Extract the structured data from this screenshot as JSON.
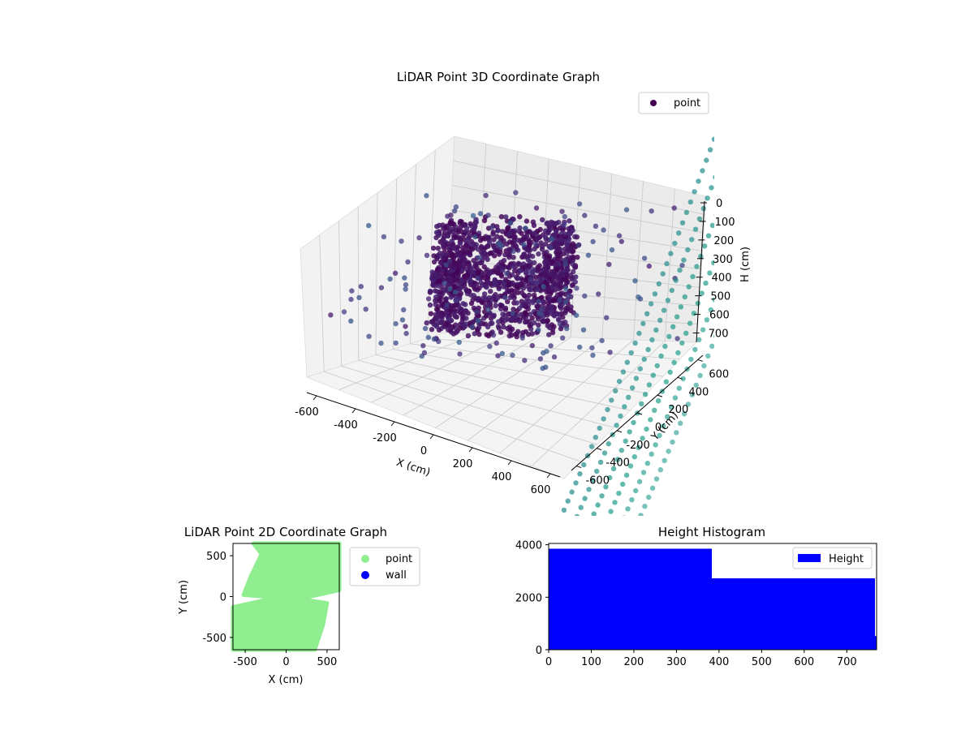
{
  "colors": {
    "point_2d": "#90ee90",
    "wall_2d": "#0000ff",
    "hist_bar": "#0000ff",
    "point_3d_dark": "#440154",
    "point_3d_teal": "#5fb4b4",
    "point_3d_mid": "#3b528b"
  },
  "chart_data": [
    {
      "type": "scatter",
      "title": "LiDAR Point 3D Coordinate Graph",
      "xlabel": "X (cm)",
      "ylabel": "Y (cm)",
      "zlabel": "H (cm)",
      "x_ticks": [
        "-600",
        "-400",
        "-200",
        "0",
        "200",
        "400",
        "600"
      ],
      "y_ticks": [
        "-600",
        "-400",
        "-200",
        "0",
        "200",
        "400",
        "600"
      ],
      "z_ticks": [
        "0",
        "100",
        "200",
        "300",
        "400",
        "500",
        "600",
        "700"
      ],
      "xlim": [
        -650,
        650
      ],
      "ylim": [
        -650,
        650
      ],
      "zlim": [
        0,
        750
      ],
      "z_inverted": true,
      "legend": {
        "entries": [
          "point"
        ],
        "placement": "top-right"
      },
      "grid": true,
      "colormap": "viridis"
    },
    {
      "type": "scatter",
      "title": "LiDAR Point 2D Coordinate Graph",
      "xlabel": "X (cm)",
      "ylabel": "Y (cm)",
      "x_ticks": [
        "-500",
        "0",
        "500"
      ],
      "y_ticks": [
        "500",
        "0",
        "-500"
      ],
      "xlim": [
        -650,
        650
      ],
      "ylim": [
        -650,
        650
      ],
      "legend": {
        "entries": [
          "point",
          "wall"
        ],
        "placement": "outside-right"
      },
      "series": [
        {
          "name": "point",
          "color": "#90ee90"
        },
        {
          "name": "wall",
          "color": "#0000ff"
        }
      ]
    },
    {
      "type": "bar",
      "title": "Height Histogram",
      "x_ticks": [
        "0",
        "100",
        "200",
        "300",
        "400",
        "500",
        "600",
        "700"
      ],
      "y_ticks": [
        "0",
        "2000",
        "4000"
      ],
      "xlim": [
        0,
        770
      ],
      "ylim": [
        0,
        4050
      ],
      "legend": {
        "entries": [
          "Height"
        ],
        "placement": "top-right"
      },
      "bins": [
        {
          "x0": 0,
          "x1": 383,
          "count": 3850
        },
        {
          "x0": 383,
          "x1": 766,
          "count": 2720
        },
        {
          "x0": 766,
          "x1": 770,
          "count": 520
        }
      ]
    }
  ]
}
